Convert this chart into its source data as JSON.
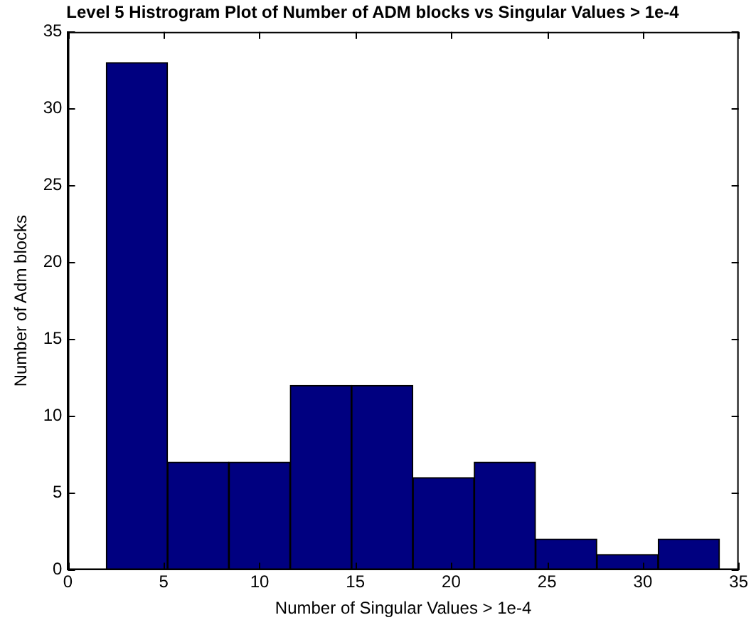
{
  "chart_data": {
    "type": "histogram",
    "title": "Level 5 Histrogram Plot of Number of ADM blocks vs Singular Values > 1e-4",
    "xlabel": "Number of Singular Values > 1e-4",
    "ylabel": "Number of Adm blocks",
    "bins": [
      2,
      5.2,
      8.4,
      11.6,
      14.8,
      18,
      21.2,
      24.4,
      27.6,
      30.8,
      34
    ],
    "values": [
      33,
      7,
      7,
      12,
      12,
      6,
      7,
      2,
      1,
      2
    ],
    "color": "#000080",
    "xlim": [
      0,
      35
    ],
    "xticks": [
      0,
      5,
      10,
      15,
      20,
      25,
      30,
      35
    ],
    "ylim": [
      0,
      35
    ],
    "yticks": [
      0,
      5,
      10,
      15,
      20,
      25,
      30,
      35
    ],
    "grid": false,
    "legend": false
  }
}
